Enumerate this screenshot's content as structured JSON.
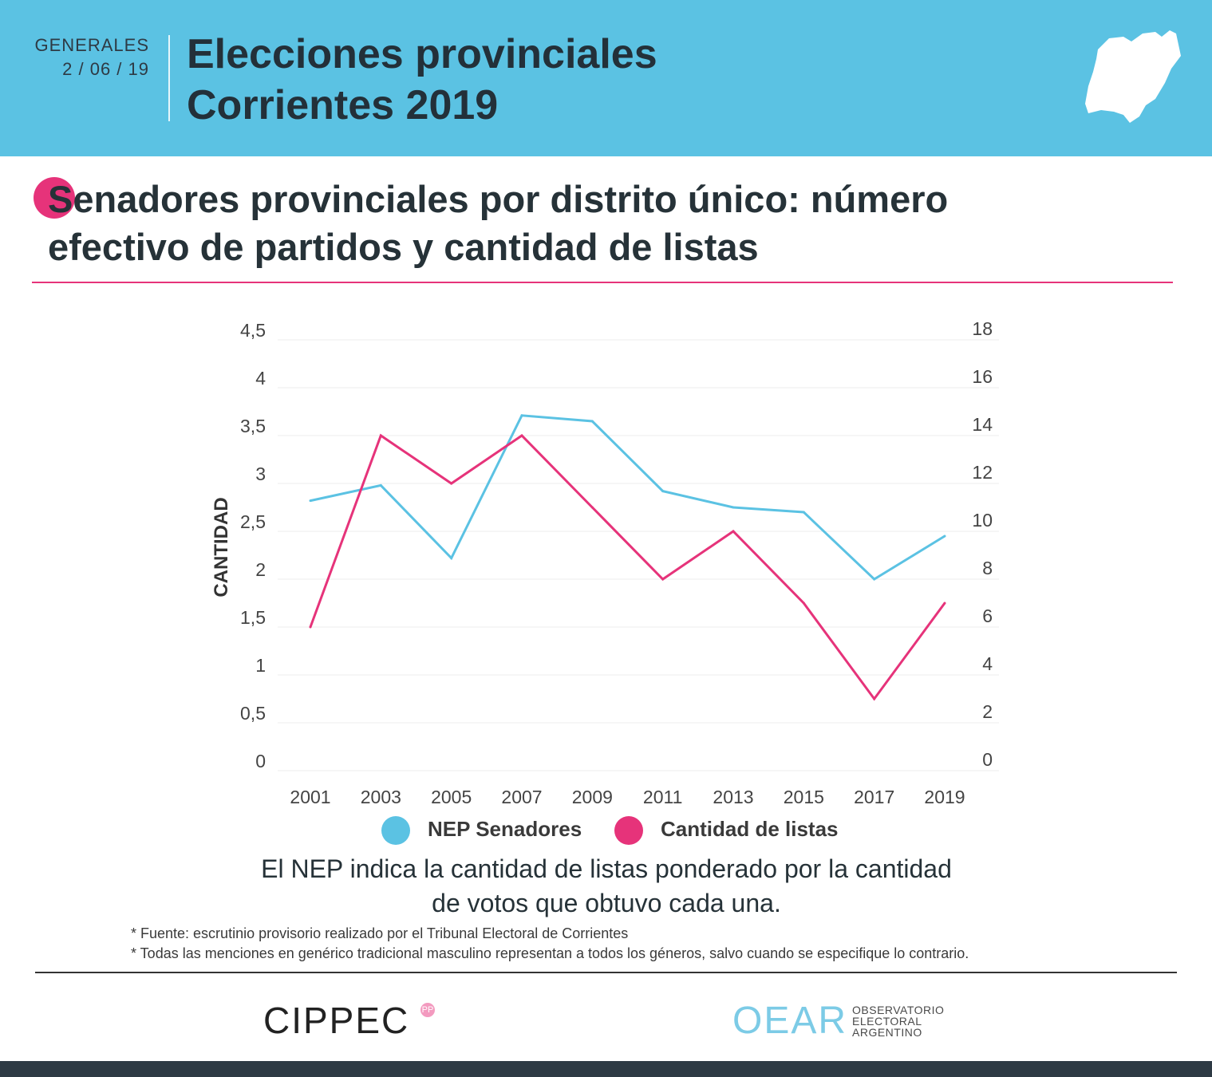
{
  "header": {
    "label": "GENERALES",
    "date": "2 / 06 / 19",
    "title_line1": "Elecciones provinciales",
    "title_line2": "Corrientes 2019"
  },
  "subtitle": {
    "line1": "Senadores provinciales por distrito único: número",
    "line2": "efectivo de partidos y cantidad de listas"
  },
  "chart_data": {
    "type": "line",
    "title": "Senadores provinciales por distrito único: número efectivo de partidos y cantidad de listas",
    "xlabel": "",
    "ylabel": "CANTIDAD",
    "categories": [
      "2001",
      "2003",
      "2005",
      "2007",
      "2009",
      "2011",
      "2013",
      "2015",
      "2017",
      "2019"
    ],
    "y_left": {
      "range": [
        0,
        4.5
      ],
      "ticks": [
        "0",
        "0,5",
        "1",
        "1,5",
        "2",
        "2,5",
        "3",
        "3,5",
        "4",
        "4,5"
      ]
    },
    "y_right": {
      "range": [
        0,
        18
      ],
      "ticks": [
        "0",
        "2",
        "4",
        "6",
        "8",
        "10",
        "12",
        "14",
        "16",
        "18"
      ]
    },
    "series": [
      {
        "name": "NEP Senadores",
        "axis": "left",
        "color": "#5bc2e3",
        "values": [
          2.82,
          2.98,
          2.22,
          3.71,
          3.65,
          2.92,
          2.75,
          2.7,
          2.0,
          2.45
        ]
      },
      {
        "name": "Cantidad de listas",
        "axis": "right",
        "color": "#e6337a",
        "values": [
          6,
          14,
          12,
          14,
          11,
          8,
          10,
          7,
          3,
          7
        ]
      }
    ],
    "legend": {
      "position": "bottom",
      "items": [
        "NEP Senadores",
        "Cantidad de listas"
      ]
    },
    "grid": true
  },
  "note": {
    "line1": "El NEP indica la cantidad de listas ponderado por la cantidad",
    "line2": "de votos que obtuvo cada una."
  },
  "footnotes": [
    "* Fuente: escrutinio provisorio realizado por el Tribunal Electoral de Corrientes",
    "* Todas las menciones en genérico tradicional masculino representan a todos los géneros, salvo cuando se especifique lo contrario."
  ],
  "logos": {
    "cippec": "CIPPEC",
    "cippec_badge": "PP",
    "oear": "OEAR",
    "oear_sub1": "OBSERVATORIO",
    "oear_sub2": "ELECTORAL",
    "oear_sub3": "ARGENTINO"
  },
  "colors": {
    "header_bg": "#5bc2e3",
    "accent_pink": "#e6337a",
    "dark": "#263238"
  }
}
